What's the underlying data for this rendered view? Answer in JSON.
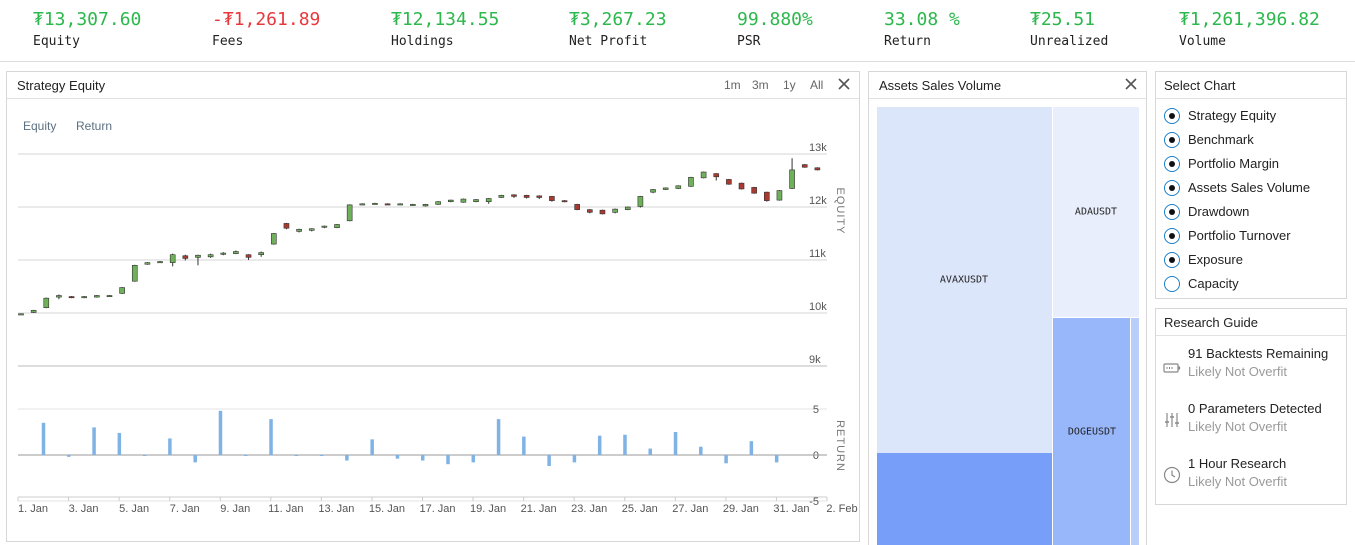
{
  "stats": [
    {
      "value": "₮13,307.60",
      "label": "Equity",
      "negative": false
    },
    {
      "value": "-₮1,261.89",
      "label": "Fees",
      "negative": true
    },
    {
      "value": "₮12,134.55",
      "label": "Holdings",
      "negative": false
    },
    {
      "value": "₮3,267.23",
      "label": "Net Profit",
      "negative": false
    },
    {
      "value": "99.880%",
      "label": "PSR",
      "negative": false
    },
    {
      "value": "33.08 %",
      "label": "Return",
      "negative": false
    },
    {
      "value": "₮25.51",
      "label": "Unrealized",
      "negative": false
    },
    {
      "value": "₮1,261,396.82",
      "label": "Volume",
      "negative": false
    }
  ],
  "strategy_panel": {
    "title": "Strategy Equity",
    "ranges": [
      "1m",
      "3m",
      "1y",
      "All"
    ],
    "toggles": [
      "Equity",
      "Return"
    ]
  },
  "assets_panel": {
    "title": "Assets Sales Volume"
  },
  "select_chart": {
    "title": "Select Chart",
    "options": [
      {
        "label": "Strategy Equity",
        "selected": true
      },
      {
        "label": "Benchmark",
        "selected": true
      },
      {
        "label": "Portfolio Margin",
        "selected": true
      },
      {
        "label": "Assets Sales Volume",
        "selected": true
      },
      {
        "label": "Drawdown",
        "selected": true
      },
      {
        "label": "Portfolio Turnover",
        "selected": true
      },
      {
        "label": "Exposure",
        "selected": true
      },
      {
        "label": "Capacity",
        "selected": false
      }
    ]
  },
  "research_guide": {
    "title": "Research Guide",
    "items": [
      {
        "icon": "battery-icon",
        "main": "91 Backtests Remaining",
        "sub": "Likely Not Overfit"
      },
      {
        "icon": "sliders-icon",
        "main": "0 Parameters Detected",
        "sub": "Likely Not Overfit"
      },
      {
        "icon": "clock-icon",
        "main": "1 Hour Research",
        "sub": "Likely Not Overfit"
      }
    ]
  },
  "colors": {
    "up": "#6fb05a",
    "down": "#a83a32",
    "bar": "#7fb2e5",
    "accent": "#2db84d",
    "negative": "#e8383d"
  },
  "chart_data": [
    {
      "type": "candlestick",
      "title": "Strategy Equity",
      "ylabel": "EQUITY",
      "ylim": [
        9000,
        13700
      ],
      "yticks": [
        9000,
        10000,
        11000,
        12000,
        13000
      ],
      "ytick_labels": [
        "9k",
        "10k",
        "11k",
        "12k",
        "13k"
      ],
      "x_tick_labels": [
        "1. Jan",
        "3. Jan",
        "5. Jan",
        "7. Jan",
        "9. Jan",
        "11. Jan",
        "13. Jan",
        "15. Jan",
        "17. Jan",
        "19. Jan",
        "21. Jan",
        "23. Jan",
        "25. Jan",
        "27. Jan",
        "29. Jan",
        "31. Jan",
        "2. Feb"
      ],
      "x_range_days": [
        0,
        32
      ],
      "candles": [
        [
          0.0,
          9980,
          9985,
          9975,
          9990
        ],
        [
          0.5,
          10010,
          10050,
          10000,
          10060
        ],
        [
          1.0,
          10100,
          10280,
          10090,
          10290
        ],
        [
          1.5,
          10300,
          10330,
          10260,
          10350
        ],
        [
          2.0,
          10310,
          10300,
          10280,
          10320
        ],
        [
          2.5,
          10290,
          10310,
          10280,
          10320
        ],
        [
          3.0,
          10300,
          10330,
          10290,
          10340
        ],
        [
          3.5,
          10320,
          10330,
          10310,
          10340
        ],
        [
          4.0,
          10370,
          10480,
          10360,
          10490
        ],
        [
          4.5,
          10600,
          10900,
          10590,
          10910
        ],
        [
          5.0,
          10920,
          10950,
          10910,
          10960
        ],
        [
          5.5,
          10960,
          10970,
          10950,
          10980
        ],
        [
          6.0,
          10950,
          11100,
          10880,
          11120
        ],
        [
          6.5,
          11080,
          11030,
          10990,
          11100
        ],
        [
          7.0,
          11050,
          11090,
          10900,
          11100
        ],
        [
          7.5,
          11060,
          11100,
          11040,
          11120
        ],
        [
          8.0,
          11110,
          11130,
          11090,
          11150
        ],
        [
          8.5,
          11120,
          11160,
          11110,
          11180
        ],
        [
          9.0,
          11100,
          11050,
          11000,
          11110
        ],
        [
          9.5,
          11100,
          11140,
          11060,
          11160
        ],
        [
          10.0,
          11300,
          11500,
          11290,
          11510
        ],
        [
          10.5,
          11690,
          11600,
          11580,
          11700
        ],
        [
          11.0,
          11540,
          11580,
          11520,
          11590
        ],
        [
          11.5,
          11560,
          11590,
          11540,
          11600
        ],
        [
          12.0,
          11620,
          11640,
          11600,
          11650
        ],
        [
          12.5,
          11610,
          11670,
          11600,
          11680
        ],
        [
          13.0,
          11740,
          12040,
          11730,
          12050
        ],
        [
          13.5,
          12050,
          12060,
          12040,
          12070
        ],
        [
          14.0,
          12060,
          12070,
          12050,
          12080
        ],
        [
          14.5,
          12060,
          12050,
          12040,
          12070
        ],
        [
          15.0,
          12050,
          12060,
          12040,
          12070
        ],
        [
          15.5,
          12040,
          12050,
          12030,
          12060
        ],
        [
          16.0,
          12020,
          12050,
          12010,
          12060
        ],
        [
          16.5,
          12050,
          12100,
          12040,
          12110
        ],
        [
          17.0,
          12100,
          12130,
          12090,
          12140
        ],
        [
          17.5,
          12090,
          12150,
          12080,
          12160
        ],
        [
          18.0,
          12100,
          12140,
          12090,
          12150
        ],
        [
          18.5,
          12100,
          12160,
          12060,
          12170
        ],
        [
          19.0,
          12180,
          12220,
          12170,
          12230
        ],
        [
          19.5,
          12230,
          12200,
          12170,
          12240
        ],
        [
          20.0,
          12220,
          12180,
          12160,
          12230
        ],
        [
          20.5,
          12210,
          12180,
          12150,
          12220
        ],
        [
          21.0,
          12200,
          12120,
          12100,
          12210
        ],
        [
          21.5,
          12120,
          12100,
          12090,
          12130
        ],
        [
          22.0,
          12050,
          11950,
          11940,
          12060
        ],
        [
          22.5,
          11950,
          11900,
          11880,
          11960
        ],
        [
          23.0,
          11940,
          11870,
          11860,
          11950
        ],
        [
          23.5,
          11900,
          11960,
          11880,
          11970
        ],
        [
          24.0,
          11950,
          12000,
          11940,
          12010
        ],
        [
          24.5,
          12010,
          12200,
          11990,
          12210
        ],
        [
          25.0,
          12280,
          12330,
          12260,
          12340
        ],
        [
          25.5,
          12330,
          12360,
          12320,
          12370
        ],
        [
          26.0,
          12350,
          12400,
          12340,
          12410
        ],
        [
          26.5,
          12390,
          12560,
          12380,
          12570
        ],
        [
          27.0,
          12550,
          12660,
          12540,
          12670
        ],
        [
          27.5,
          12630,
          12570,
          12500,
          12640
        ],
        [
          28.0,
          12520,
          12430,
          12420,
          12530
        ],
        [
          28.5,
          12450,
          12340,
          12330,
          12460
        ],
        [
          29.0,
          12370,
          12260,
          12250,
          12380
        ],
        [
          29.5,
          12280,
          12120,
          12100,
          12290
        ],
        [
          30.0,
          12130,
          12310,
          12120,
          12320
        ],
        [
          30.5,
          12350,
          12700,
          12340,
          12920
        ],
        [
          31.0,
          12800,
          12750,
          12740,
          12810
        ],
        [
          31.5,
          12740,
          12700,
          12690,
          12750
        ]
      ]
    },
    {
      "type": "bar",
      "title": "Return",
      "ylabel": "RETURN",
      "ylim": [
        -5,
        6
      ],
      "yticks": [
        -5,
        0,
        5
      ],
      "values": [
        3.5,
        -0.2,
        3.0,
        2.4,
        0,
        1.8,
        -0.8,
        4.8,
        0,
        3.9,
        0,
        0,
        -0.6,
        1.7,
        -0.4,
        -0.6,
        -1.0,
        -0.8,
        3.9,
        2.0,
        -1.2,
        -0.8,
        2.1,
        2.2,
        0.7,
        2.5,
        0.9,
        -0.9,
        1.5,
        -0.8
      ]
    }
  ],
  "treemap": [
    {
      "label": "AVAXUSDT",
      "share": 0.63
    },
    {
      "label": "ADAUSDT",
      "share": 0.29
    },
    {
      "label": "DOGEUSDT",
      "share": 0.08
    }
  ]
}
